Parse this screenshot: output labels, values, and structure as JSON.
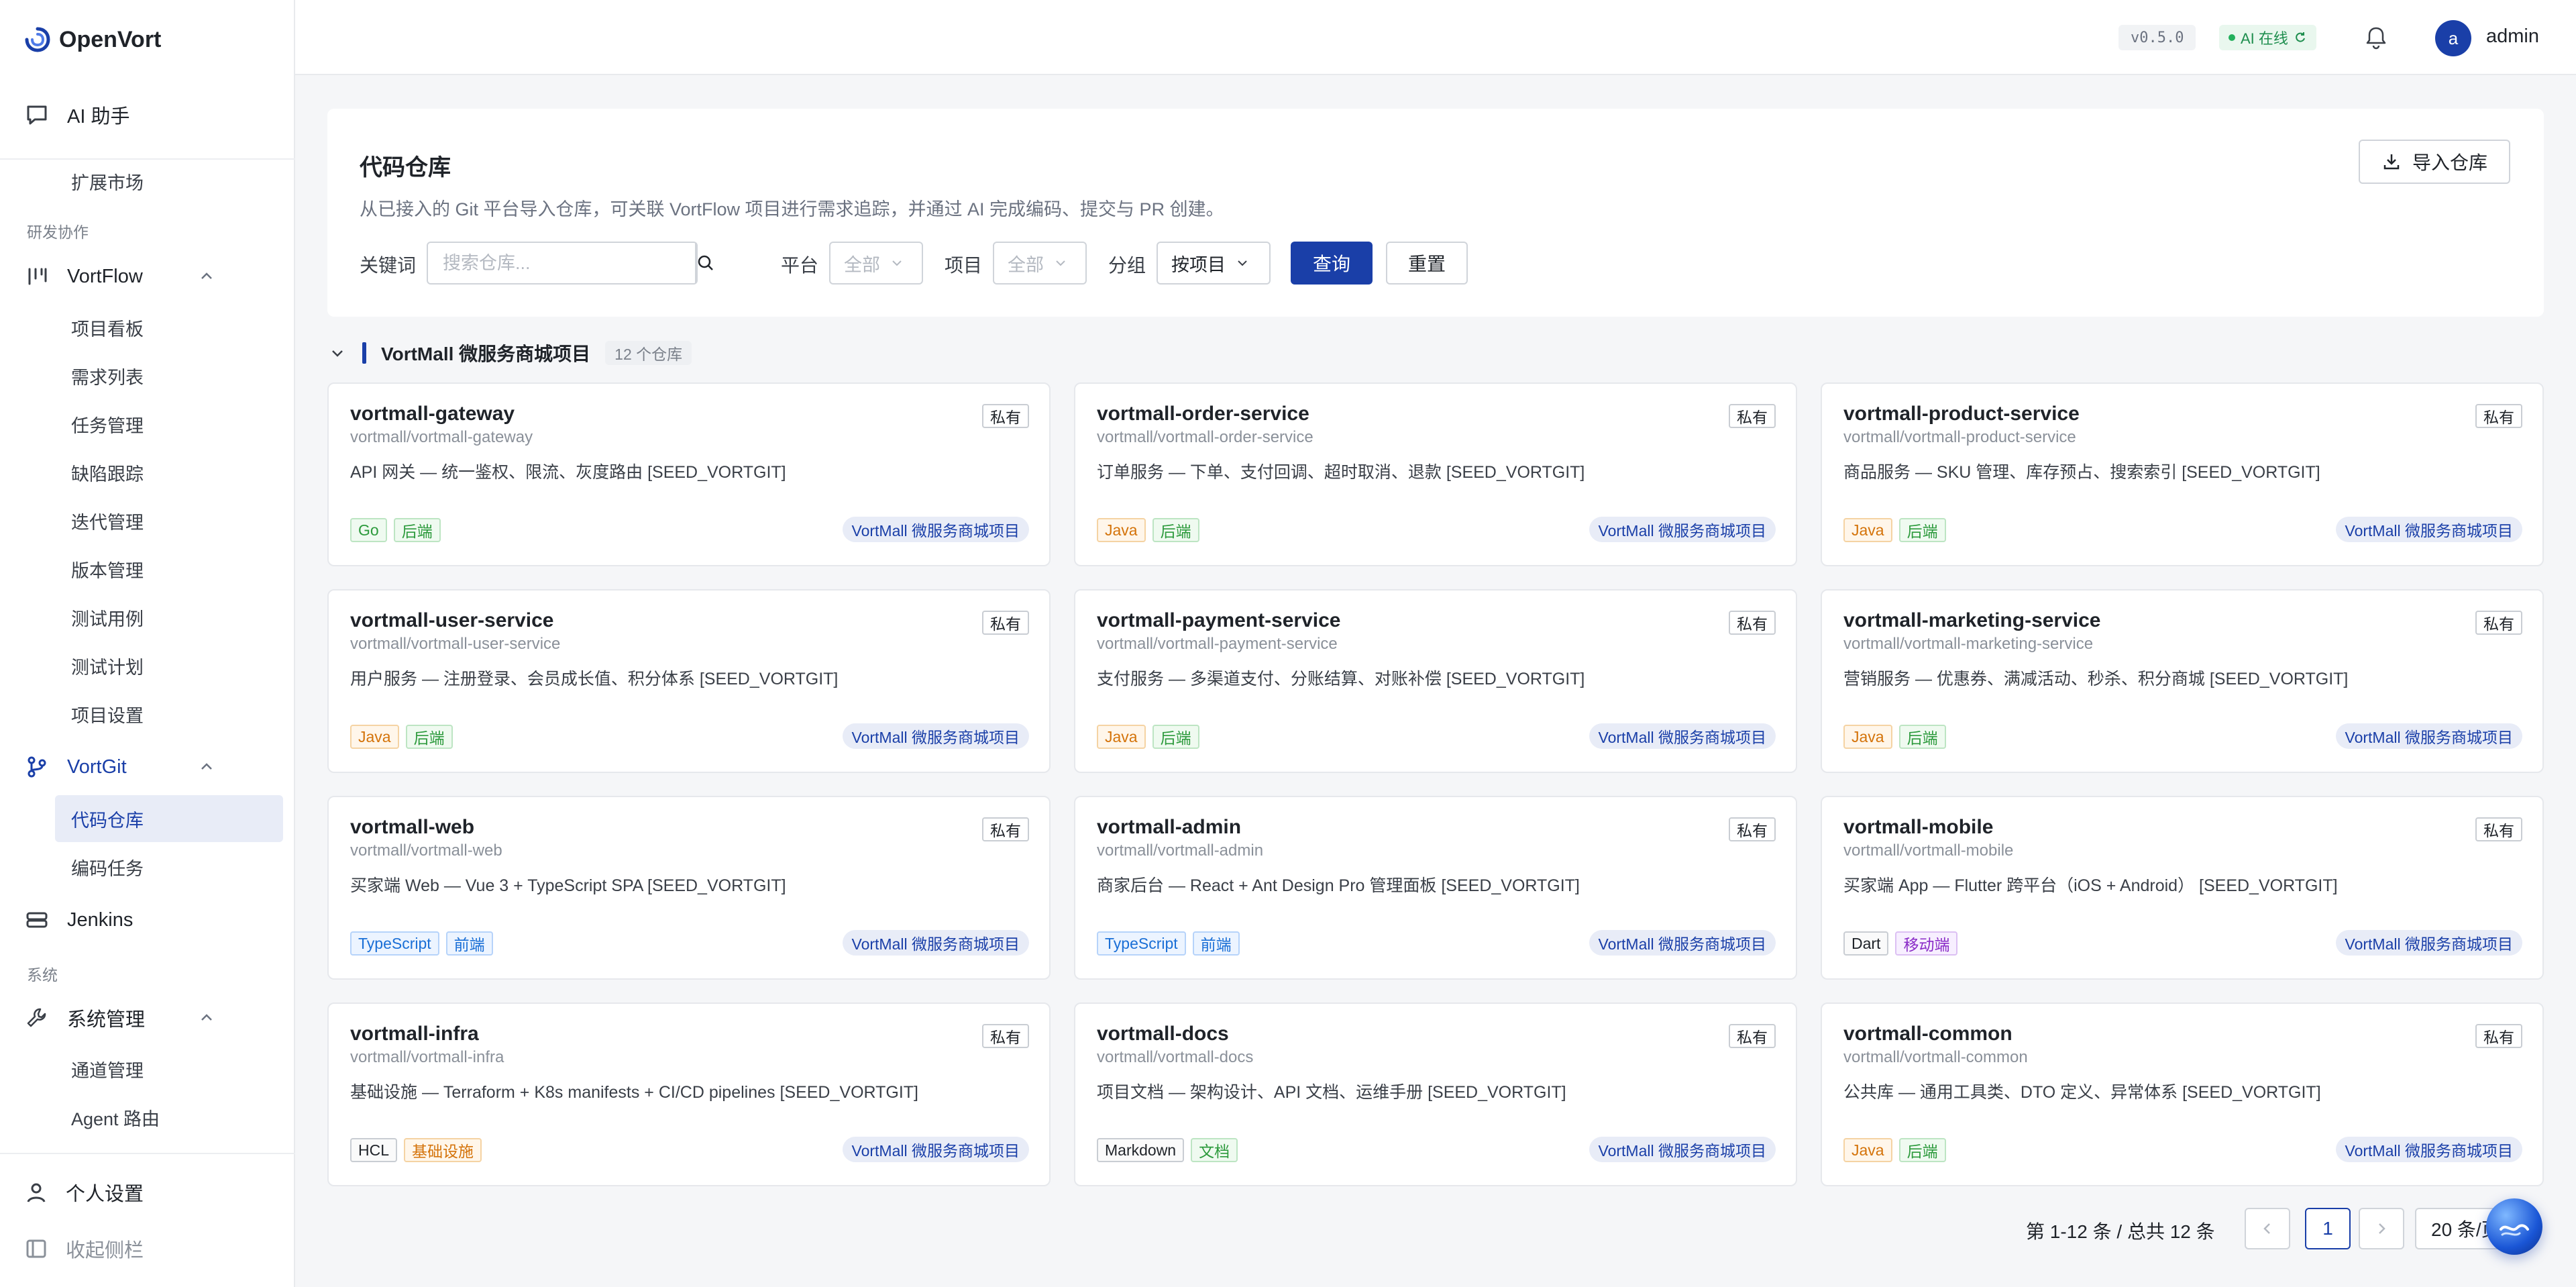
{
  "app": {
    "name": "OpenVort"
  },
  "sidebar": {
    "ai_assistant": "AI 助手",
    "extension_market": "扩展市场",
    "group_dev": "研发协作",
    "vortflow": {
      "label": "VortFlow",
      "items": [
        "项目看板",
        "需求列表",
        "任务管理",
        "缺陷跟踪",
        "迭代管理",
        "版本管理",
        "测试用例",
        "测试计划",
        "项目设置"
      ]
    },
    "vortgit": {
      "label": "VortGit",
      "items": [
        "代码仓库",
        "编码任务"
      ]
    },
    "jenkins": "Jenkins",
    "group_system": "系统",
    "system_mgmt": {
      "label": "系统管理",
      "items": [
        "通道管理",
        "Agent 路由"
      ]
    },
    "personal_settings": "个人设置",
    "collapse": "收起侧栏"
  },
  "header": {
    "version": "v0.5.0",
    "ai_status": "AI 在线",
    "user_initial": "a",
    "user_name": "admin"
  },
  "panel": {
    "title": "代码仓库",
    "description": "从已接入的 Git 平台导入仓库，可关联 VortFlow 项目进行需求追踪，并通过 AI 完成编码、提交与 PR 创建。",
    "import_label": "导入仓库",
    "keyword_label": "关键词",
    "search_placeholder": "搜索仓库...",
    "platform_label": "平台",
    "platform_value": "全部",
    "project_label": "项目",
    "project_value": "全部",
    "group_label": "分组",
    "group_value": "按项目",
    "query_label": "查询",
    "reset_label": "重置"
  },
  "group": {
    "name": "VortMall 微服务商城项目",
    "count": "12 个仓库"
  },
  "repos": [
    {
      "name": "vortmall-gateway",
      "path": "vortmall/vortmall-gateway",
      "desc": "API 网关 — 统一鉴权、限流、灰度路由 [SEED_VORTGIT]",
      "visibility": "私有",
      "project": "VortMall 微服务商城项目",
      "tags": [
        {
          "text": "Go",
          "color": "green"
        },
        {
          "text": "后端",
          "color": "green"
        }
      ]
    },
    {
      "name": "vortmall-order-service",
      "path": "vortmall/vortmall-order-service",
      "desc": "订单服务 — 下单、支付回调、超时取消、退款 [SEED_VORTGIT]",
      "visibility": "私有",
      "project": "VortMall 微服务商城项目",
      "tags": [
        {
          "text": "Java",
          "color": "orange"
        },
        {
          "text": "后端",
          "color": "green"
        }
      ]
    },
    {
      "name": "vortmall-product-service",
      "path": "vortmall/vortmall-product-service",
      "desc": "商品服务 — SKU 管理、库存预占、搜索索引 [SEED_VORTGIT]",
      "visibility": "私有",
      "project": "VortMall 微服务商城项目",
      "tags": [
        {
          "text": "Java",
          "color": "orange"
        },
        {
          "text": "后端",
          "color": "green"
        }
      ]
    },
    {
      "name": "vortmall-user-service",
      "path": "vortmall/vortmall-user-service",
      "desc": "用户服务 — 注册登录、会员成长值、积分体系 [SEED_VORTGIT]",
      "visibility": "私有",
      "project": "VortMall 微服务商城项目",
      "tags": [
        {
          "text": "Java",
          "color": "orange"
        },
        {
          "text": "后端",
          "color": "green"
        }
      ]
    },
    {
      "name": "vortmall-payment-service",
      "path": "vortmall/vortmall-payment-service",
      "desc": "支付服务 — 多渠道支付、分账结算、对账补偿 [SEED_VORTGIT]",
      "visibility": "私有",
      "project": "VortMall 微服务商城项目",
      "tags": [
        {
          "text": "Java",
          "color": "orange"
        },
        {
          "text": "后端",
          "color": "green"
        }
      ]
    },
    {
      "name": "vortmall-marketing-service",
      "path": "vortmall/vortmall-marketing-service",
      "desc": "营销服务 — 优惠券、满减活动、秒杀、积分商城 [SEED_VORTGIT]",
      "visibility": "私有",
      "project": "VortMall 微服务商城项目",
      "tags": [
        {
          "text": "Java",
          "color": "orange"
        },
        {
          "text": "后端",
          "color": "green"
        }
      ]
    },
    {
      "name": "vortmall-web",
      "path": "vortmall/vortmall-web",
      "desc": "买家端 Web — Vue 3 + TypeScript SPA [SEED_VORTGIT]",
      "visibility": "私有",
      "project": "VortMall 微服务商城项目",
      "tags": [
        {
          "text": "TypeScript",
          "color": "blue"
        },
        {
          "text": "前端",
          "color": "blue"
        }
      ]
    },
    {
      "name": "vortmall-admin",
      "path": "vortmall/vortmall-admin",
      "desc": "商家后台 — React + Ant Design Pro 管理面板 [SEED_VORTGIT]",
      "visibility": "私有",
      "project": "VortMall 微服务商城项目",
      "tags": [
        {
          "text": "TypeScript",
          "color": "blue"
        },
        {
          "text": "前端",
          "color": "blue"
        }
      ]
    },
    {
      "name": "vortmall-mobile",
      "path": "vortmall/vortmall-mobile",
      "desc": "买家端 App — Flutter 跨平台（iOS + Android） [SEED_VORTGIT]",
      "visibility": "私有",
      "project": "VortMall 微服务商城项目",
      "tags": [
        {
          "text": "Dart",
          "color": "gray"
        },
        {
          "text": "移动端",
          "color": "purple"
        }
      ]
    },
    {
      "name": "vortmall-infra",
      "path": "vortmall/vortmall-infra",
      "desc": "基础设施 — Terraform + K8s manifests + CI/CD pipelines [SEED_VORTGIT]",
      "visibility": "私有",
      "project": "VortMall 微服务商城项目",
      "tags": [
        {
          "text": "HCL",
          "color": "gray"
        },
        {
          "text": "基础设施",
          "color": "orange"
        }
      ]
    },
    {
      "name": "vortmall-docs",
      "path": "vortmall/vortmall-docs",
      "desc": "项目文档 — 架构设计、API 文档、运维手册 [SEED_VORTGIT]",
      "visibility": "私有",
      "project": "VortMall 微服务商城项目",
      "tags": [
        {
          "text": "Markdown",
          "color": "gray"
        },
        {
          "text": "文档",
          "color": "green"
        }
      ]
    },
    {
      "name": "vortmall-common",
      "path": "vortmall/vortmall-common",
      "desc": "公共库 — 通用工具类、DTO 定义、异常体系 [SEED_VORTGIT]",
      "visibility": "私有",
      "project": "VortMall 微服务商城项目",
      "tags": [
        {
          "text": "Java",
          "color": "orange"
        },
        {
          "text": "后端",
          "color": "green"
        }
      ]
    }
  ],
  "pagination": {
    "summary": "第 1-12 条 / 总共 12 条",
    "current_page": "1",
    "page_size": "20 条/页"
  },
  "colors": {
    "primary": "#1a3fa8",
    "online": "#22b05c"
  }
}
